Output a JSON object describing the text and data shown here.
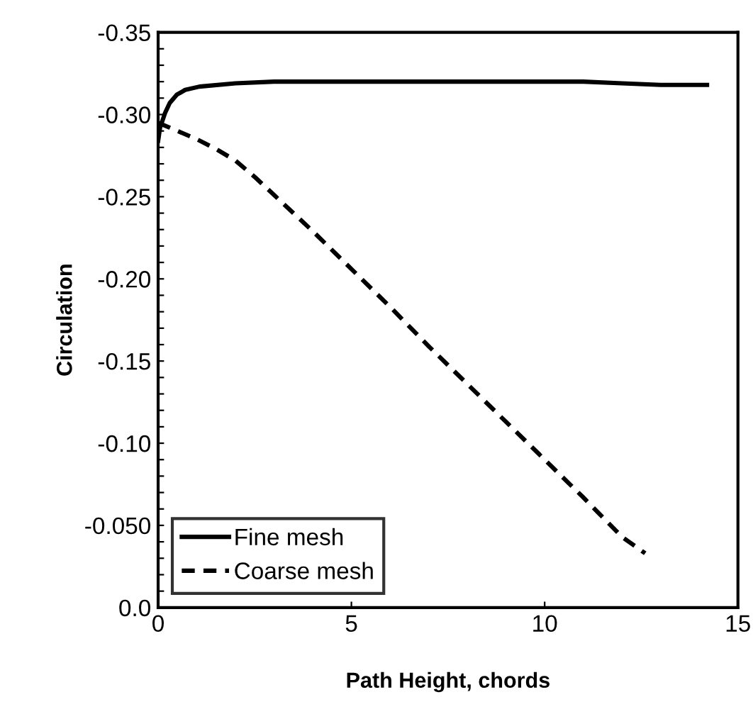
{
  "chart_data": {
    "type": "line",
    "xlabel": "Path Height, chords",
    "ylabel": "Circulation",
    "xlim": [
      0,
      15
    ],
    "xticks": [
      0,
      5,
      10,
      15
    ],
    "ylim": [
      0,
      -0.35
    ],
    "yticks": [
      {
        "value": 0,
        "label": "0.0"
      },
      {
        "value": -0.01,
        "label": null
      },
      {
        "value": -0.02,
        "label": null
      },
      {
        "value": -0.03,
        "label": null
      },
      {
        "value": -0.04,
        "label": null
      },
      {
        "value": -0.05,
        "label": "-0.050"
      },
      {
        "value": -0.06,
        "label": null
      },
      {
        "value": -0.07,
        "label": null
      },
      {
        "value": -0.08,
        "label": null
      },
      {
        "value": -0.09,
        "label": null
      },
      {
        "value": -0.1,
        "label": "-0.10"
      },
      {
        "value": -0.11,
        "label": null
      },
      {
        "value": -0.12,
        "label": null
      },
      {
        "value": -0.13,
        "label": null
      },
      {
        "value": -0.14,
        "label": null
      },
      {
        "value": -0.15,
        "label": "-0.15"
      },
      {
        "value": -0.16,
        "label": null
      },
      {
        "value": -0.17,
        "label": null
      },
      {
        "value": -0.18,
        "label": null
      },
      {
        "value": -0.19,
        "label": null
      },
      {
        "value": -0.2,
        "label": "-0.20"
      },
      {
        "value": -0.21,
        "label": null
      },
      {
        "value": -0.22,
        "label": null
      },
      {
        "value": -0.23,
        "label": null
      },
      {
        "value": -0.24,
        "label": null
      },
      {
        "value": -0.25,
        "label": "-0.25"
      },
      {
        "value": -0.26,
        "label": null
      },
      {
        "value": -0.27,
        "label": null
      },
      {
        "value": -0.28,
        "label": null
      },
      {
        "value": -0.29,
        "label": null
      },
      {
        "value": -0.3,
        "label": "-0.30"
      },
      {
        "value": -0.31,
        "label": null
      },
      {
        "value": -0.32,
        "label": null
      },
      {
        "value": -0.33,
        "label": null
      },
      {
        "value": -0.34,
        "label": null
      },
      {
        "value": -0.35,
        "label": "-0.35"
      }
    ],
    "grid": false,
    "legend": "bottom left",
    "marker": "none",
    "series": [
      {
        "name": "Fine mesh",
        "color": "#000000",
        "line_style": "solid",
        "x": [
          0,
          0.05,
          0.18,
          0.3,
          0.48,
          0.7,
          1.07,
          2,
          3,
          5,
          7,
          9,
          11,
          12,
          13,
          14.2
        ],
        "values": [
          -0.284,
          -0.292,
          -0.301,
          -0.307,
          -0.312,
          -0.315,
          -0.317,
          -0.319,
          -0.32,
          -0.32,
          -0.32,
          -0.32,
          -0.32,
          -0.319,
          -0.318,
          -0.318
        ]
      },
      {
        "name": "Coarse mesh",
        "color": "#000000",
        "line_style": "dashed",
        "x": [
          0,
          0.5,
          1,
          1.5,
          2,
          2.5,
          3,
          4,
          5,
          6,
          7,
          8,
          9,
          10,
          11,
          12,
          12.6
        ],
        "values": [
          -0.295,
          -0.29,
          -0.285,
          -0.279,
          -0.272,
          -0.262,
          -0.251,
          -0.229,
          -0.206,
          -0.183,
          -0.159,
          -0.136,
          -0.113,
          -0.09,
          -0.067,
          -0.043,
          -0.033
        ]
      }
    ]
  }
}
